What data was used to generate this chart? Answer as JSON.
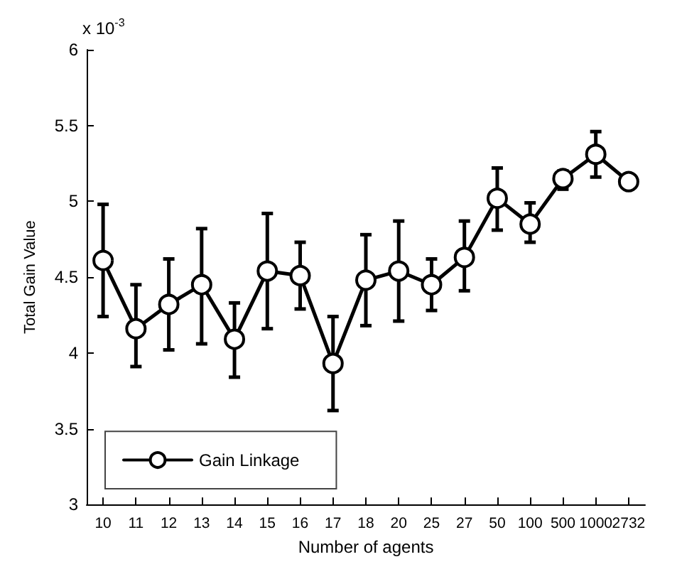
{
  "chart_data": {
    "type": "line",
    "xlabel": "Number of agents",
    "ylabel": "Total Gain Value",
    "annotations": [
      "x 10$^{-3}$"
    ],
    "categories": [
      "10",
      "11",
      "12",
      "13",
      "14",
      "15",
      "16",
      "17",
      "18",
      "20",
      "25",
      "27",
      "50",
      "100",
      "500",
      "1000",
      "2732"
    ],
    "series": [
      {
        "name": "Gain Linkage",
        "color": "#000000",
        "values": [
          4.61,
          4.16,
          4.32,
          4.45,
          4.09,
          4.54,
          4.51,
          3.93,
          4.48,
          4.54,
          4.45,
          4.63,
          5.02,
          4.85,
          5.15,
          5.31,
          5.13
        ],
        "errors": [
          [
            4.24,
            4.98
          ],
          [
            3.91,
            4.45
          ],
          [
            4.02,
            4.62
          ],
          [
            4.06,
            4.82
          ],
          [
            3.84,
            4.33
          ],
          [
            4.16,
            4.92
          ],
          [
            4.29,
            4.73
          ],
          [
            3.62,
            4.24
          ],
          [
            4.18,
            4.78
          ],
          [
            4.21,
            4.87
          ],
          [
            4.28,
            4.62
          ],
          [
            4.41,
            4.87
          ],
          [
            4.81,
            5.22
          ],
          [
            4.73,
            4.99
          ],
          [
            5.08,
            5.2
          ],
          [
            5.16,
            5.46
          ],
          null
        ]
      }
    ],
    "ylim": [
      3,
      6
    ],
    "yticks": [
      3,
      3.5,
      4,
      4.5,
      5,
      5.5,
      6
    ],
    "grid": false,
    "legend": "bottom left",
    "marker": "circle",
    "line_style": "solid"
  }
}
